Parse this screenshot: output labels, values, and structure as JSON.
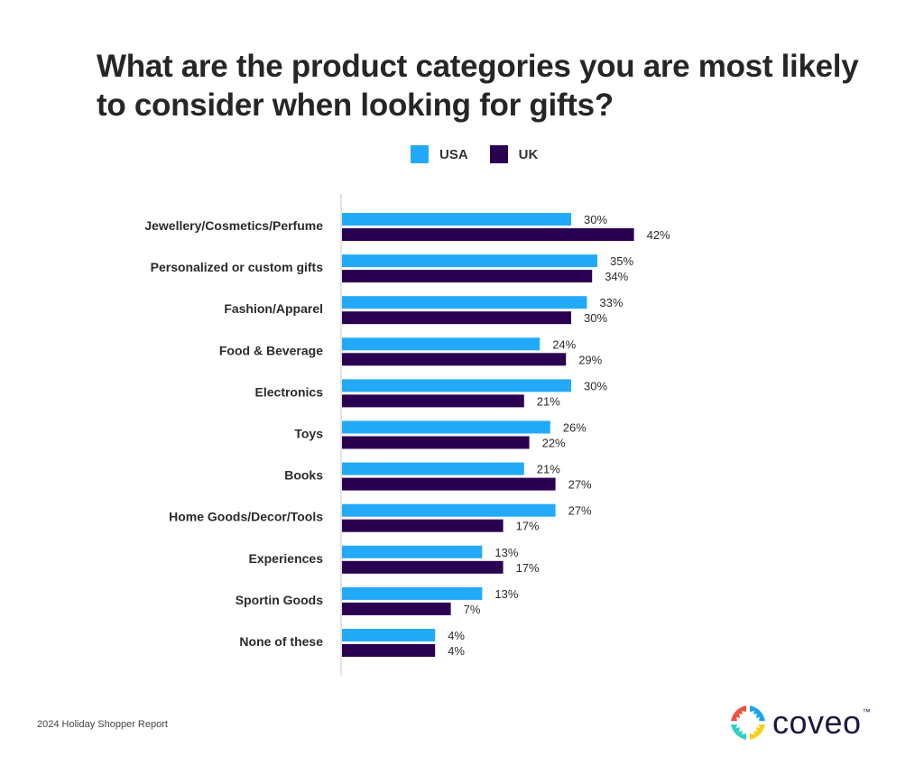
{
  "chart_data": {
    "type": "bar",
    "orientation": "horizontal",
    "title": "What are the product categories you are most likely to consider when looking for gifts?",
    "xlabel": "",
    "ylabel": "",
    "unit": "%",
    "grid": false,
    "legend_position": "top-center",
    "categories": [
      "Jewellery/Cosmetics/Perfume",
      "Personalized or custom gifts",
      "Fashion/Apparel",
      "Food & Beverage",
      "Electronics",
      "Toys",
      "Books",
      "Home Goods/Decor/Tools",
      "Experiences",
      "Sportin Goods",
      "None of these"
    ],
    "series": [
      {
        "name": "USA",
        "color": "#22aaf8",
        "values": [
          30,
          35,
          33,
          24,
          30,
          26,
          21,
          27,
          13,
          13,
          4
        ]
      },
      {
        "name": "UK",
        "color": "#2a0050",
        "values": [
          42,
          34,
          30,
          29,
          21,
          22,
          27,
          17,
          17,
          7,
          4
        ]
      }
    ],
    "xlim": [
      0,
      45
    ]
  },
  "legend": [
    {
      "label": "USA",
      "color": "#22aaf8"
    },
    {
      "label": "UK",
      "color": "#2a0050"
    }
  ],
  "footer": {
    "source": "2024 Holiday Shopper Report"
  },
  "brand": {
    "name": "coveo",
    "trademark": "™"
  }
}
